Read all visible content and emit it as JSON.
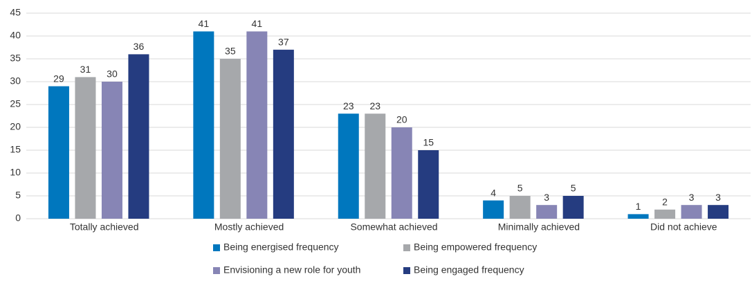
{
  "chart_data": {
    "type": "bar",
    "categories": [
      "Totally achieved",
      "Mostly achieved",
      "Somewhat achieved",
      "Minimally achieved",
      "Did not achieve"
    ],
    "series": [
      {
        "name": "Being energised frequency",
        "color": "#0077be",
        "values": [
          29,
          41,
          23,
          4,
          1
        ]
      },
      {
        "name": "Being empowered frequency",
        "color": "#a6a8ab",
        "values": [
          31,
          35,
          23,
          5,
          2
        ]
      },
      {
        "name": "Envisioning a new role for youth",
        "color": "#8785b5",
        "values": [
          30,
          41,
          20,
          3,
          3
        ]
      },
      {
        "name": "Being engaged frequency",
        "color": "#253c80",
        "values": [
          36,
          37,
          15,
          5,
          3
        ]
      }
    ],
    "ylim": [
      0,
      45
    ],
    "yticks": [
      0,
      5,
      10,
      15,
      20,
      25,
      30,
      35,
      40,
      45
    ],
    "grid": true,
    "legend": "bottom"
  }
}
